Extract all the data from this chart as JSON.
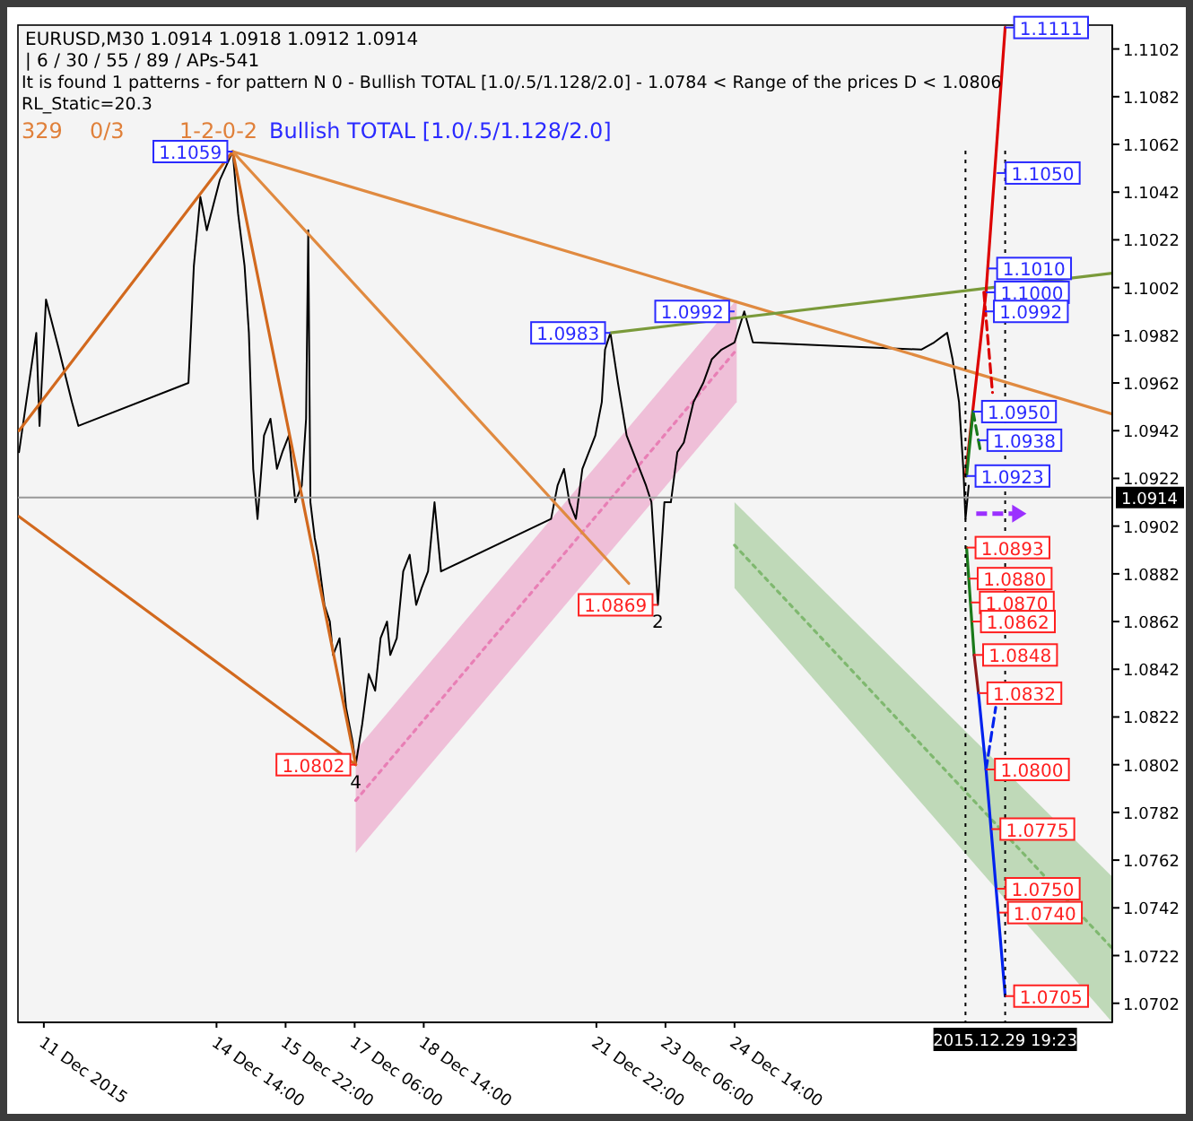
{
  "chart_data": {
    "type": "line",
    "title": "EURUSD,M30  1.0914 1.0918 1.0912 1.0914",
    "subtitle": "| 6 / 30 / 55 / 89 / APs-541",
    "xlim": [
      "2015-12-10T18:00",
      "2015-12-31T21:00"
    ],
    "ylim": [
      1.0694,
      1.1112
    ],
    "xticks": [
      {
        "value": "2015-12-11T06:00",
        "label": "11 Dec 2015"
      },
      {
        "value": "2015-12-14T14:00",
        "label": "14 Dec 14:00"
      },
      {
        "value": "2015-12-15T22:00",
        "label": "15 Dec 22:00"
      },
      {
        "value": "2015-12-17T06:00",
        "label": "17 Dec 06:00"
      },
      {
        "value": "2015-12-18T14:00",
        "label": "18 Dec 14:00"
      },
      {
        "value": "2015-12-21T22:00",
        "label": "21 Dec 22:00"
      },
      {
        "value": "2015-12-23T06:00",
        "label": "23 Dec 06:00"
      },
      {
        "value": "2015-12-24T14:00",
        "label": "24 Dec 14:00"
      }
    ],
    "yticks": [
      1.0702,
      1.0722,
      1.0742,
      1.0762,
      1.0782,
      1.0802,
      1.0822,
      1.0842,
      1.0862,
      1.0882,
      1.0902,
      1.0922,
      1.0942,
      1.0962,
      1.0982,
      1.1002,
      1.1022,
      1.1042,
      1.1062,
      1.1082,
      1.1102
    ],
    "grid": false,
    "marker": "none",
    "series": [
      {
        "type": "line",
        "color": "#e87fb5",
        "line_style": "dotted",
        "x": [
          "2015-12-17T06:30",
          "2015-12-24T15:00"
        ],
        "values": [
          1.0787,
          1.0976
        ],
        "lower": [
          1.0765,
          1.0954
        ],
        "upper": [
          1.0808,
          1.0997
        ]
      },
      {
        "type": "line",
        "color": "#7fb86f",
        "line_style": "dotted",
        "x": [
          "2015-12-24T14:00",
          "2015-12-31T21:00"
        ],
        "values": [
          1.0894,
          1.0725
        ],
        "lower": [
          1.0876,
          1.0694
        ],
        "upper": [
          1.0912,
          1.0755
        ]
      },
      {
        "color": "#000000",
        "x": [
          "2015-12-10T18:30",
          "2015-12-10T22:30",
          "2015-12-11T02:30",
          "2015-12-11T04:00",
          "2015-12-11T07:00",
          "2015-12-11T13:00",
          "2015-12-11T19:00",
          "2015-12-11T22:00",
          "2015-12-14T01:00",
          "2015-12-14T03:30",
          "2015-12-14T06:30",
          "2015-12-14T09:30",
          "2015-12-14T15:30",
          "2015-12-14T21:30",
          "2015-12-15T00:00",
          "2015-12-15T03:00",
          "2015-12-15T05:00",
          "2015-12-15T07:00",
          "2015-12-15T09:00",
          "2015-12-15T12:00",
          "2015-12-15T15:00",
          "2015-12-15T18:00",
          "2015-12-15T20:30",
          "2015-12-15T23:30",
          "2015-12-16T02:30",
          "2015-12-16T05:30",
          "2015-12-16T07:30",
          "2015-12-16T08:30",
          "2015-12-16T09:30",
          "2015-12-16T11:30",
          "2015-12-16T13:00",
          "2015-12-16T16:00",
          "2015-12-16T18:30",
          "2015-12-16T20:00",
          "2015-12-16T23:00",
          "2015-12-17T02:00",
          "2015-12-17T05:00",
          "2015-12-17T06:30",
          "2015-12-17T09:30",
          "2015-12-17T12:30",
          "2015-12-17T15:30",
          "2015-12-17T18:00",
          "2015-12-17T21:00",
          "2015-12-17T22:30",
          "2015-12-18T01:30",
          "2015-12-18T04:30",
          "2015-12-18T07:30",
          "2015-12-18T10:30",
          "2015-12-18T13:00",
          "2015-12-18T16:00",
          "2015-12-18T19:00",
          "2015-12-18T22:00",
          "2015-12-21T01:00",
          "2015-12-21T04:00",
          "2015-12-21T07:00",
          "2015-12-21T09:30",
          "2015-12-21T12:30",
          "2015-12-21T15:30",
          "2015-12-21T21:30",
          "2015-12-22T00:30",
          "2015-12-22T02:00",
          "2015-12-22T04:30",
          "2015-12-22T08:00",
          "2015-12-22T12:00",
          "2015-12-22T15:00",
          "2015-12-22T21:00",
          "2015-12-22T23:30",
          "2015-12-23T02:30",
          "2015-12-23T05:30",
          "2015-12-23T08:30",
          "2015-12-23T11:30",
          "2015-12-23T14:30",
          "2015-12-23T19:00",
          "2015-12-23T23:30",
          "2015-12-24T03:30",
          "2015-12-24T08:00",
          "2015-12-24T14:00",
          "2015-12-24T18:30",
          "2015-12-24T22:30",
          "2015-12-28T04:30",
          "2015-12-28T10:30",
          "2015-12-28T16:30",
          "2015-12-28T19:00",
          "2015-12-28T22:00",
          "2015-12-29T00:00",
          "2015-12-29T01:00",
          "2015-12-29T02:30"
        ],
        "values": [
          1.0933,
          1.0958,
          1.0983,
          1.0944,
          1.0997,
          1.0976,
          1.0954,
          1.0944,
          1.0962,
          1.1011,
          1.104,
          1.1026,
          1.1047,
          1.1059,
          1.1033,
          1.1011,
          1.0983,
          1.0926,
          1.0905,
          1.094,
          1.0947,
          1.0926,
          1.0933,
          1.094,
          1.0912,
          1.0919,
          1.0947,
          1.1026,
          1.0912,
          1.0897,
          1.089,
          1.0869,
          1.0862,
          1.0848,
          1.0855,
          1.0826,
          1.0812,
          1.0802,
          1.0819,
          1.084,
          1.0833,
          1.0855,
          1.0862,
          1.0848,
          1.0855,
          1.0883,
          1.089,
          1.0869,
          1.0876,
          1.0883,
          1.0912,
          1.0883,
          1.0905,
          1.0919,
          1.0926,
          1.0912,
          1.0905,
          1.0926,
          1.094,
          1.0954,
          1.0976,
          1.0983,
          1.0962,
          1.094,
          1.0933,
          1.0919,
          1.0912,
          1.0869,
          1.0912,
          1.0912,
          1.0933,
          1.0937,
          1.0954,
          1.0962,
          1.0972,
          1.0976,
          1.0979,
          1.0992,
          1.0979,
          1.0976,
          1.0979,
          1.0983,
          1.0972,
          1.0954,
          1.0926,
          1.0905,
          1.0919
        ]
      },
      {
        "color": "#d2691e",
        "x": [
          "2015-12-10T18:30",
          "2015-12-14T21:30",
          "2015-12-17T06:30"
        ],
        "values": [
          1.0942,
          1.1059,
          1.0802
        ]
      },
      {
        "color": "#d2691e",
        "x": [
          "2015-12-10T18:30",
          "2015-12-17T06:30"
        ],
        "values": [
          1.0906,
          1.0802
        ]
      },
      {
        "color": "#e08a40",
        "x": [
          "2015-12-14T21:30",
          "2015-12-31T21:00"
        ],
        "values": [
          1.1059,
          1.0949
        ]
      },
      {
        "color": "#e08a40",
        "x": [
          "2015-12-14T21:30",
          "2015-12-22T13:00"
        ],
        "values": [
          1.1059,
          1.0878
        ]
      },
      {
        "color": "#7a9a3a",
        "x": [
          "2015-12-22T04:30",
          "2015-12-31T21:00"
        ],
        "values": [
          1.0983,
          1.1008
        ]
      },
      {
        "color": "#dd0000",
        "x": [
          "2015-12-29T01:00",
          "2015-12-29T10:30",
          "2015-12-29T19:23"
        ],
        "values": [
          1.0923,
          1.1,
          1.1111
        ]
      },
      {
        "color": "#dd0000",
        "line_style": "dashed",
        "x": [
          "2015-12-29T09:30",
          "2015-12-29T13:30"
        ],
        "values": [
          1.1,
          1.0958
        ]
      },
      {
        "color": "#1a7a1a",
        "x": [
          "2015-12-29T01:30",
          "2015-12-29T04:30"
        ],
        "values": [
          1.0923,
          1.095
        ]
      },
      {
        "color": "#1a7a1a",
        "line_style": "dashed",
        "x": [
          "2015-12-29T04:30",
          "2015-12-29T08:00"
        ],
        "values": [
          1.095,
          1.0933
        ]
      },
      {
        "color": "#1a7a1a",
        "x": [
          "2015-12-29T01:30",
          "2015-12-29T05:00"
        ],
        "values": [
          1.0893,
          1.0848
        ]
      },
      {
        "color": "#8b1a1a",
        "x": [
          "2015-12-29T05:00",
          "2015-12-29T07:00"
        ],
        "values": [
          1.0848,
          1.0832
        ]
      },
      {
        "color": "#0022ee",
        "x": [
          "2015-12-29T07:00",
          "2015-12-29T10:30",
          "2015-12-29T19:23"
        ],
        "values": [
          1.0832,
          1.08,
          1.0705
        ]
      },
      {
        "color": "#0022ee",
        "line_style": "dashed",
        "x": [
          "2015-12-29T10:30",
          "2015-12-29T15:00"
        ],
        "values": [
          1.08,
          1.0826
        ]
      }
    ],
    "ref_lines": [
      {
        "axis": "y",
        "value": 1.0914,
        "label": "1.0914",
        "color": "#999999",
        "line_style": "solid"
      },
      {
        "axis": "x",
        "value": "2015-12-29T01:00",
        "color": "#000000",
        "line_style": "dotted"
      },
      {
        "axis": "x",
        "value": "2015-12-29T19:23",
        "label": "2015.12.29 19:23",
        "color": "#000000",
        "line_style": "dotted"
      }
    ],
    "annotations": [
      "It is found 1 patterns  -  for pattern N 0 - Bullish TOTAL [1.0/.5/1.128/2.0] - 1.0784 < Range of the prices D < 1.0806",
      "RL_Static=20.3",
      "329",
      "0/3",
      "1-2-0-2",
      "Bullish TOTAL [1.0/.5/1.128/2.0]",
      {
        "text": "1.1059",
        "x": "2015-12-14T21:30",
        "y": 1.1059
      },
      {
        "text": "1.0983",
        "x": "2015-12-22T04:30",
        "y": 1.0983
      },
      {
        "text": "1.0992",
        "x": "2015-12-24T14:00",
        "y": 1.0992
      },
      {
        "text": "1.0869",
        "x": "2015-12-23T02:30",
        "y": 1.0869
      },
      {
        "text": "1.0802",
        "x": "2015-12-17T06:30",
        "y": 1.0802
      },
      {
        "text": "2",
        "x": "2015-12-23T02:30",
        "y": 1.0869
      },
      {
        "text": "4",
        "x": "2015-12-17T06:30",
        "y": 1.0802
      },
      {
        "text": "1.1111",
        "x": "2015-12-29T19:23",
        "y": 1.1111
      },
      {
        "text": "1.1050",
        "x": "2015-12-29T15:30",
        "y": 1.105
      },
      {
        "text": "1.1010",
        "x": "2015-12-29T11:30",
        "y": 1.101
      },
      {
        "text": "1.1000",
        "x": "2015-12-29T10:30",
        "y": 1.1
      },
      {
        "text": "1.0992",
        "x": "2015-12-29T10:00",
        "y": 1.0992
      },
      {
        "text": "1.0950",
        "x": "2015-12-29T04:30",
        "y": 1.095
      },
      {
        "text": "1.0938",
        "x": "2015-12-29T07:00",
        "y": 1.0938
      },
      {
        "text": "1.0923",
        "x": "2015-12-29T01:30",
        "y": 1.0923
      },
      {
        "text": "1.0893",
        "x": "2015-12-29T01:30",
        "y": 1.0893
      },
      {
        "text": "1.0880",
        "x": "2015-12-29T02:30",
        "y": 1.088
      },
      {
        "text": "1.0870",
        "x": "2015-12-29T03:30",
        "y": 1.087
      },
      {
        "text": "1.0862",
        "x": "2015-12-29T04:00",
        "y": 1.0862
      },
      {
        "text": "1.0848",
        "x": "2015-12-29T05:00",
        "y": 1.0848
      },
      {
        "text": "1.0832",
        "x": "2015-12-29T07:00",
        "y": 1.0832
      },
      {
        "text": "1.0800",
        "x": "2015-12-29T10:30",
        "y": 1.08
      },
      {
        "text": "1.0775",
        "x": "2015-12-29T13:00",
        "y": 1.0775
      },
      {
        "text": "1.0750",
        "x": "2015-12-29T15:30",
        "y": 1.075
      },
      {
        "text": "1.0740",
        "x": "2015-12-29T16:30",
        "y": 1.074
      },
      {
        "text": "1.0705",
        "x": "2015-12-29T19:23",
        "y": 1.0705
      }
    ]
  }
}
